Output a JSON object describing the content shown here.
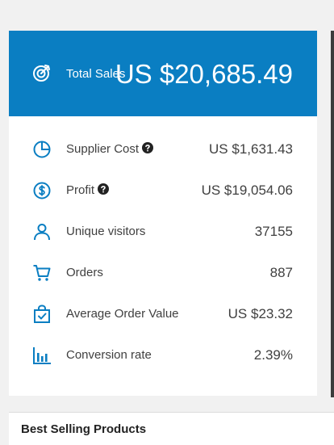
{
  "summary": {
    "total_sales_label": "Total Sales",
    "total_sales_value": "US $20,685.49"
  },
  "metrics": [
    {
      "label": "Supplier Cost",
      "value": "US $1,631.43",
      "icon": "pie-chart-icon",
      "has_help": true
    },
    {
      "label": "Profit",
      "value": "US $19,054.06",
      "icon": "dollar-circle-icon",
      "has_help": true
    },
    {
      "label": "Unique visitors",
      "value": "37155",
      "icon": "user-icon",
      "has_help": false
    },
    {
      "label": "Orders",
      "value": "887",
      "icon": "cart-icon",
      "has_help": false
    },
    {
      "label": "Average Order Value",
      "value": "US $23.32",
      "icon": "shopping-bag-check-icon",
      "has_help": false
    },
    {
      "label": "Conversion rate",
      "value": "2.39%",
      "icon": "bar-chart-icon",
      "has_help": false
    }
  ],
  "best_selling": {
    "title": "Best Selling Products"
  },
  "colors": {
    "header_bg": "#0a7ec2",
    "accent": "#0a7ec2",
    "text": "#404040",
    "background": "#f1f1f1"
  }
}
